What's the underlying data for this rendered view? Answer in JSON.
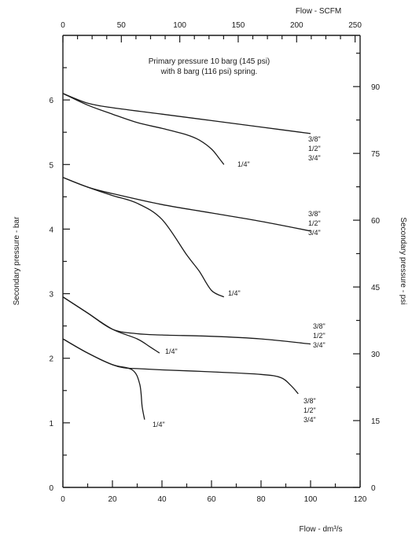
{
  "chart_data": {
    "type": "line",
    "title_lines": [
      "Primary pressure 10 barg (145 psi)",
      "with 8 barg (116 psi) spring."
    ],
    "axes": {
      "bottom": {
        "label": "Flow - dm³/s",
        "ticks": [
          "0",
          "20",
          "40",
          "60",
          "80",
          "100",
          "120"
        ],
        "range": [
          0,
          120
        ]
      },
      "left": {
        "label": "Secondary pressure - bar",
        "ticks": [
          "0",
          "1",
          "2",
          "3",
          "4",
          "5",
          "6"
        ],
        "range": [
          0,
          7.0
        ]
      },
      "top": {
        "label": "Flow - SCFM",
        "ticks": [
          "0",
          "50",
          "100",
          "150",
          "200",
          "250"
        ],
        "range": [
          0,
          254.3
        ]
      },
      "right": {
        "label": "Secondary pressure - psi",
        "ticks": [
          "0",
          "15",
          "30",
          "45",
          "60",
          "75",
          "90"
        ],
        "range": [
          0,
          101.5
        ]
      }
    },
    "series": [
      {
        "name": "1/4\"",
        "group": 1,
        "x": [
          0,
          10,
          20,
          30,
          40,
          50,
          55,
          60,
          63,
          65
        ],
        "y": [
          6.1,
          5.92,
          5.78,
          5.65,
          5.56,
          5.46,
          5.38,
          5.24,
          5.1,
          5.0
        ]
      },
      {
        "name": "3/8\"",
        "group": 1,
        "x": [
          0,
          10,
          20,
          40,
          60,
          80,
          100
        ],
        "y": [
          6.1,
          5.95,
          5.88,
          5.78,
          5.68,
          5.58,
          5.48
        ]
      },
      {
        "name": "1/4\"",
        "group": 2,
        "x": [
          0,
          10,
          20,
          30,
          40,
          50,
          55,
          60,
          65
        ],
        "y": [
          4.8,
          4.65,
          4.52,
          4.4,
          4.15,
          3.6,
          3.35,
          3.05,
          2.95
        ]
      },
      {
        "name": "3/8\"",
        "group": 2,
        "x": [
          0,
          10,
          20,
          40,
          60,
          80,
          100
        ],
        "y": [
          4.8,
          4.65,
          4.55,
          4.38,
          4.25,
          4.12,
          3.97
        ]
      },
      {
        "name": "1/4\"",
        "group": 3,
        "x": [
          0,
          10,
          20,
          30,
          35,
          39
        ],
        "y": [
          2.95,
          2.7,
          2.45,
          2.3,
          2.18,
          2.08
        ]
      },
      {
        "name": "3/8\"",
        "group": 3,
        "x": [
          0,
          10,
          20,
          30,
          40,
          60,
          80,
          100
        ],
        "y": [
          2.95,
          2.7,
          2.45,
          2.38,
          2.36,
          2.34,
          2.3,
          2.22
        ]
      },
      {
        "name": "1/4\"",
        "group": 4,
        "x": [
          0,
          10,
          20,
          28,
          31,
          32,
          33
        ],
        "y": [
          2.3,
          2.08,
          1.9,
          1.82,
          1.6,
          1.25,
          1.05
        ]
      },
      {
        "name": "3/8\"",
        "group": 4,
        "x": [
          0,
          10,
          20,
          25,
          30,
          40,
          60,
          80,
          88,
          92,
          95
        ],
        "y": [
          2.3,
          2.08,
          1.9,
          1.85,
          1.84,
          1.82,
          1.79,
          1.75,
          1.7,
          1.58,
          1.45
        ]
      }
    ],
    "size_labels": [
      {
        "group": 1,
        "labels": [
          "3/8\"",
          "1/2\"",
          "3/4\""
        ],
        "small": "1/4\""
      },
      {
        "group": 2,
        "labels": [
          "3/8\"",
          "1/2\"",
          "3/4\""
        ],
        "small": "1/4\""
      },
      {
        "group": 3,
        "labels": [
          "3/8\"",
          "1/2\"",
          "3/4\""
        ],
        "small": "1/4\""
      },
      {
        "group": 4,
        "labels": [
          "3/8\"",
          "1/2\"",
          "3/4\""
        ],
        "small": "1/4\""
      }
    ]
  }
}
